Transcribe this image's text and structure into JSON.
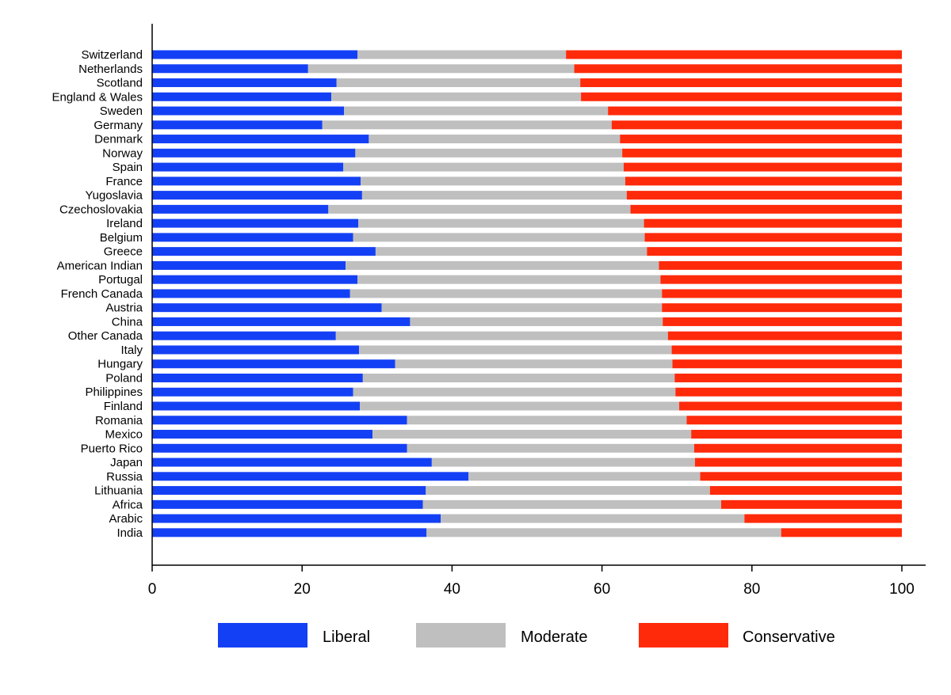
{
  "chart_data": {
    "type": "bar",
    "orientation": "horizontal",
    "stacked": true,
    "categories": [
      "Switzerland",
      "Netherlands",
      "Scotland",
      "England & Wales",
      "Sweden",
      "Germany",
      "Denmark",
      "Norway",
      "Spain",
      "France",
      "Yugoslavia",
      "Czechoslovakia",
      "Ireland",
      "Belgium",
      "Greece",
      "American Indian",
      "Portugal",
      "French Canada",
      "Austria",
      "China",
      "Other Canada",
      "Italy",
      "Hungary",
      "Poland",
      "Philippines",
      "Finland",
      "Romania",
      "Mexico",
      "Puerto Rico",
      "Japan",
      "Russia",
      "Lithuania",
      "Africa",
      "Arabic",
      "India"
    ],
    "series": [
      {
        "name": "Liberal",
        "color": "#1440f5",
        "values": [
          27.4,
          20.8,
          24.6,
          23.9,
          25.6,
          22.7,
          28.9,
          27.1,
          25.5,
          27.8,
          28.0,
          23.5,
          27.5,
          26.8,
          29.8,
          25.8,
          27.4,
          26.4,
          30.6,
          34.4,
          24.5,
          27.6,
          32.4,
          28.1,
          26.8,
          27.7,
          34.0,
          29.4,
          34.0,
          37.3,
          42.2,
          36.5,
          36.1,
          38.5,
          36.6
        ]
      },
      {
        "name": "Moderate",
        "color": "#bfbfbf",
        "values": [
          27.8,
          35.5,
          32.5,
          33.3,
          35.2,
          38.6,
          33.5,
          35.6,
          37.4,
          35.3,
          35.3,
          40.3,
          38.1,
          38.9,
          36.2,
          41.8,
          40.4,
          41.6,
          37.4,
          33.7,
          44.3,
          41.7,
          37.0,
          41.6,
          43.0,
          42.6,
          37.3,
          42.5,
          38.3,
          35.1,
          30.9,
          37.9,
          39.8,
          40.5,
          47.3
        ]
      },
      {
        "name": "Conservative",
        "color": "#ff2a0a",
        "values": [
          44.8,
          43.7,
          42.9,
          42.8,
          39.2,
          38.7,
          37.6,
          37.3,
          37.1,
          36.9,
          36.7,
          36.2,
          34.4,
          34.3,
          34.0,
          32.4,
          32.2,
          32.0,
          32.0,
          31.9,
          31.2,
          30.7,
          30.6,
          30.3,
          30.2,
          29.7,
          28.7,
          28.1,
          27.7,
          27.6,
          26.9,
          25.6,
          24.1,
          21.0,
          16.1
        ]
      }
    ],
    "xlim": [
      0,
      100
    ],
    "xticks": [
      0,
      20,
      40,
      60,
      80,
      100
    ],
    "title": "",
    "xlabel": "",
    "ylabel": "",
    "grid": false,
    "legend": {
      "placement": "bottom",
      "entries": [
        "Liberal",
        "Moderate",
        "Conservative"
      ]
    }
  }
}
